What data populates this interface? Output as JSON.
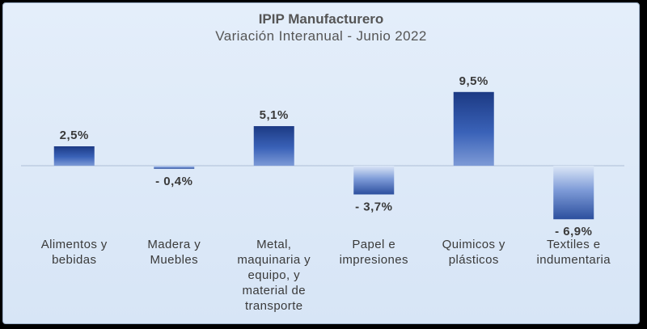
{
  "chart_data": {
    "type": "bar",
    "title": "IPIP Manufacturero",
    "subtitle": "Variación Interanual -  Junio 2022",
    "categories": [
      [
        "Alimentos y",
        "bebidas"
      ],
      [
        "Madera y",
        "Muebles"
      ],
      [
        "Metal,",
        "maquinaria y",
        "equipo, y",
        "material de",
        "transporte"
      ],
      [
        "Papel e",
        "impresiones"
      ],
      [
        "Quimicos y",
        "plásticos"
      ],
      [
        "Textiles e",
        "indumentaria"
      ]
    ],
    "values": [
      2.5,
      -0.4,
      5.1,
      -3.7,
      9.5,
      -6.9
    ],
    "data_labels": [
      "2,5%",
      "- 0,4%",
      "5,1%",
      "- 3,7%",
      "9,5%",
      "- 6,9%"
    ],
    "ylim": [
      -7.5,
      10.5
    ],
    "grid": false,
    "legend": "none",
    "colors": {
      "bar_dark": "#1f3f8a",
      "bar_light": "#dbe6f6",
      "background": "#dde8f7",
      "border": "#9fb3cc",
      "text": "#3a3a3a"
    }
  }
}
